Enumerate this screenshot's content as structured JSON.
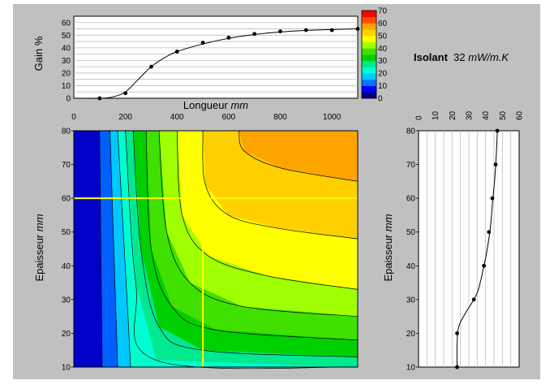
{
  "annotation": {
    "label": "Isolant",
    "value": "32",
    "unit": "mW/m.K"
  },
  "chart_data": [
    {
      "type": "line",
      "name_hint": "gain-curve",
      "xlabel": "Longueur",
      "xlabel_unit": "mm",
      "ylabel": "Gain %",
      "xlim": [
        0,
        1100
      ],
      "ylim": [
        0,
        65
      ],
      "xticks": [
        0,
        200,
        400,
        600,
        800,
        1000
      ],
      "yticks": [
        0,
        10,
        20,
        30,
        40,
        50,
        60
      ],
      "grid": true,
      "points": {
        "x": [
          100,
          200,
          300,
          400,
          500,
          600,
          700,
          800,
          900,
          1000,
          1100
        ],
        "y": [
          0,
          4,
          25,
          37,
          44,
          48,
          51,
          53,
          54,
          54,
          55
        ]
      },
      "fit": {
        "x": [
          0,
          100,
          150,
          200,
          250,
          300,
          350,
          400,
          500,
          600,
          700,
          800,
          900,
          1000,
          1100
        ],
        "y": [
          0,
          0,
          1,
          5,
          15,
          25,
          32,
          37,
          43,
          47.5,
          50.5,
          52.5,
          53.8,
          54.5,
          55
        ]
      }
    },
    {
      "type": "heatmap",
      "name_hint": "contour-map",
      "ylabel": "Epaisseur",
      "ylabel_unit": "mm",
      "xlim": [
        0,
        1100
      ],
      "ylim": [
        10,
        80
      ],
      "yticks": [
        10,
        20,
        30,
        40,
        50,
        60,
        70,
        80
      ],
      "crosshair": {
        "x": 500,
        "y": 60,
        "color": "#ffff00"
      },
      "levels": [
        {
          "name": "0-10",
          "color": "#0000c8",
          "boundary": [
            [
              100,
              80
            ],
            [
              110,
              10
            ]
          ]
        },
        {
          "name": "10-15",
          "color": "#0060ff",
          "boundary": [
            [
              140,
              80
            ],
            [
              170,
              10
            ]
          ]
        },
        {
          "name": "15-20",
          "color": "#00c8ff",
          "boundary": [
            [
              170,
              80
            ],
            [
              210,
              25
            ],
            [
              220,
              10
            ]
          ]
        },
        {
          "name": "20-25",
          "color": "#00ffd0",
          "boundary": [
            [
              200,
              80
            ],
            [
              240,
              35
            ],
            [
              320,
              12
            ],
            [
              1100,
              10
            ]
          ]
        },
        {
          "name": "25-30",
          "color": "#00e890",
          "boundary": [
            [
              230,
              80
            ],
            [
              260,
              45
            ],
            [
              330,
              22
            ],
            [
              500,
              15
            ],
            [
              1100,
              13
            ]
          ]
        },
        {
          "name": "30-35",
          "color": "#00d000",
          "boundary": [
            [
              280,
              80
            ],
            [
              300,
              45
            ],
            [
              380,
              28
            ],
            [
              550,
              21
            ],
            [
              1100,
              18
            ]
          ]
        },
        {
          "name": "35-40",
          "color": "#40e000",
          "boundary": [
            [
              330,
              80
            ],
            [
              360,
              50
            ],
            [
              450,
              35
            ],
            [
              650,
              28
            ],
            [
              1100,
              25
            ]
          ]
        },
        {
          "name": "40-45",
          "color": "#a0ff00",
          "boundary": [
            [
              400,
              80
            ],
            [
              420,
              55
            ],
            [
              520,
              43
            ],
            [
              750,
              37
            ],
            [
              1100,
              33
            ]
          ]
        },
        {
          "name": "45-50",
          "color": "#ffff00",
          "boundary": [
            [
              500,
              80
            ],
            [
              510,
              64
            ],
            [
              600,
              55
            ],
            [
              800,
              51
            ],
            [
              1100,
              48
            ]
          ]
        },
        {
          "name": "50-55",
          "color": "#ffd000",
          "boundary": [
            [
              640,
              80
            ],
            [
              660,
              74
            ],
            [
              800,
              69
            ],
            [
              1100,
              65
            ]
          ]
        },
        {
          "name": "55-60",
          "color": "#ffa500",
          "boundary": [
            [
              1100,
              80
            ]
          ]
        },
        {
          "name": "60-70",
          "color": "#ff5000",
          "boundary": []
        }
      ]
    },
    {
      "type": "line",
      "name_hint": "thickness-profile",
      "ylabel": "Epaisseur",
      "ylabel_unit": "mm",
      "xlim": [
        0,
        60
      ],
      "ylim": [
        10,
        80
      ],
      "xticks": [
        0,
        10,
        20,
        30,
        40,
        50,
        60
      ],
      "yticks": [
        10,
        20,
        30,
        40,
        50,
        60,
        70,
        80
      ],
      "grid": true,
      "points": {
        "x": [
          23,
          23,
          33,
          39,
          42,
          44,
          46,
          47
        ],
        "y": [
          10,
          20,
          30,
          40,
          50,
          60,
          70,
          80
        ]
      },
      "fit": {
        "x": [
          23,
          23,
          24,
          28,
          35,
          39,
          41,
          43,
          44,
          45.5,
          46.5,
          47
        ],
        "y": [
          10,
          17,
          22,
          26,
          32,
          40,
          45,
          52,
          58,
          66,
          74,
          80
        ]
      }
    },
    {
      "type": "bar",
      "name_hint": "colorbar",
      "ylim": [
        0,
        70
      ],
      "yticks": [
        0,
        10,
        20,
        30,
        40,
        50,
        60,
        70
      ],
      "colors": [
        "#000080",
        "#0000ff",
        "#0078ff",
        "#00c8ff",
        "#00ffd0",
        "#00e890",
        "#00d000",
        "#40e000",
        "#a0ff00",
        "#ffff00",
        "#ffd000",
        "#ffa500",
        "#ff5000",
        "#ff0000"
      ]
    }
  ]
}
